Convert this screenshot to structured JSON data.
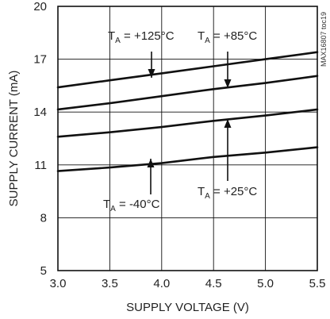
{
  "chart_data": {
    "type": "line",
    "xlabel": "SUPPLY VOLTAGE (V)",
    "ylabel": "SUPPLY CURRENT (mA)",
    "xlim": [
      3.0,
      5.5
    ],
    "ylim": [
      5,
      20
    ],
    "xticks": [
      "3.0",
      "3.5",
      "4.0",
      "4.5",
      "5.0",
      "5.5"
    ],
    "yticks": [
      "5",
      "8",
      "11",
      "14",
      "17",
      "20"
    ],
    "grid": true,
    "figure_code": "MAX16807 toc19",
    "series": [
      {
        "name": "T_A = +125°C",
        "x": [
          3.0,
          3.5,
          4.0,
          4.5,
          5.0,
          5.5
        ],
        "y": [
          15.4,
          15.8,
          16.2,
          16.6,
          17.0,
          17.4
        ]
      },
      {
        "name": "T_A = +85°C",
        "x": [
          3.0,
          3.5,
          4.0,
          4.5,
          5.0,
          5.5
        ],
        "y": [
          14.15,
          14.5,
          14.9,
          15.3,
          15.65,
          16.05
        ]
      },
      {
        "name": "T_A = +25°C",
        "x": [
          3.0,
          3.5,
          4.0,
          4.5,
          5.0,
          5.5
        ],
        "y": [
          12.6,
          12.85,
          13.15,
          13.5,
          13.8,
          14.15
        ]
      },
      {
        "name": "T_A = -40°C",
        "x": [
          3.0,
          3.5,
          4.0,
          4.5,
          5.0,
          5.5
        ],
        "y": [
          10.65,
          10.85,
          11.1,
          11.45,
          11.7,
          12.0
        ]
      }
    ],
    "annotations": [
      {
        "main": "T",
        "sub": "A",
        "rest": " = +125°C",
        "series": 0
      },
      {
        "main": "T",
        "sub": "A",
        "rest": " = +85°C",
        "series": 1
      },
      {
        "main": "T",
        "sub": "A",
        "rest": " = +25°C",
        "series": 2
      },
      {
        "main": "T",
        "sub": "A",
        "rest": " = -40°C",
        "series": 3
      }
    ]
  }
}
